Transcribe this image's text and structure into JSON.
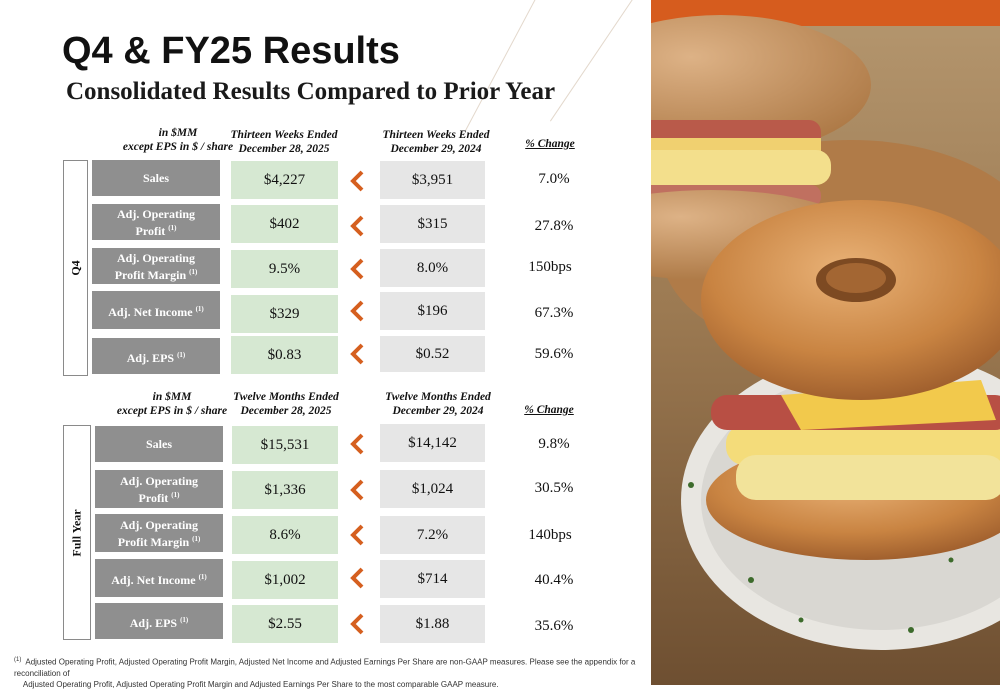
{
  "title": "Q4 & FY25 Results",
  "subtitle": "Consolidated Results Compared to Prior Year",
  "colors": {
    "metric_bg": "#8f8f8f",
    "current_bg": "#d6e8d2",
    "prior_bg": "#e6e6e6",
    "arrow": "#d55f1f",
    "accent_bar": "#d65c1e"
  },
  "q4": {
    "side_label": "Q4",
    "header": {
      "unit_line1": "in $MM",
      "unit_line2": "except EPS in $ / share",
      "current_line1": "Thirteen Weeks Ended",
      "current_line2": "December 28, 2025",
      "prior_line1": "Thirteen Weeks Ended",
      "prior_line2": "December 29, 2024",
      "change": "% Change"
    },
    "rows": [
      {
        "line1": "Sales",
        "line2": "",
        "sup": "",
        "current": "$4,227",
        "prior": "$3,951",
        "change": "7.0%"
      },
      {
        "line1": "Adj. Operating",
        "line2": "Profit",
        "sup": "(1)",
        "current": "$402",
        "prior": "$315",
        "change": "27.8%"
      },
      {
        "line1": "Adj. Operating",
        "line2": "Profit Margin",
        "sup": "(1)",
        "current": "9.5%",
        "prior": "8.0%",
        "change": "150bps"
      },
      {
        "line1": "Adj. Net Income",
        "line2": "",
        "sup": "(1)",
        "current": "$329",
        "prior": "$196",
        "change": "67.3%"
      },
      {
        "line1": "Adj. EPS",
        "line2": "",
        "sup": "(1)",
        "current": "$0.83",
        "prior": "$0.52",
        "change": "59.6%"
      }
    ]
  },
  "fy": {
    "side_label": "Full Year",
    "header": {
      "unit_line1": "in $MM",
      "unit_line2": "except EPS in $ / share",
      "current_line1": "Twelve Months Ended",
      "current_line2": "December 28, 2025",
      "prior_line1": "Twelve Months Ended",
      "prior_line2": "December 29, 2024",
      "change": "% Change"
    },
    "rows": [
      {
        "line1": "Sales",
        "line2": "",
        "sup": "",
        "current": "$15,531",
        "prior": "$14,142",
        "change": "9.8%"
      },
      {
        "line1": "Adj. Operating",
        "line2": "Profit",
        "sup": "(1)",
        "current": "$1,336",
        "prior": "$1,024",
        "change": "30.5%"
      },
      {
        "line1": "Adj. Operating",
        "line2": "Profit Margin",
        "sup": "(1)",
        "current": "8.6%",
        "prior": "7.2%",
        "change": "140bps"
      },
      {
        "line1": "Adj. Net Income",
        "line2": "",
        "sup": "(1)",
        "current": "$1,002",
        "prior": "$714",
        "change": "40.4%"
      },
      {
        "line1": "Adj. EPS",
        "line2": "",
        "sup": "(1)",
        "current": "$2.55",
        "prior": "$1.88",
        "change": "35.6%"
      }
    ]
  },
  "footnote": {
    "marker": "(1)",
    "line1": "Adjusted Operating Profit, Adjusted Operating Profit Margin, Adjusted Net Income and Adjusted Earnings Per Share are non-GAAP measures. Please see the appendix for a reconciliation of",
    "line2": "Adjusted Operating  Profit, Adjusted Operating Profit Margin and Adjusted Earnings Per Share to the most comparable GAAP measure."
  }
}
